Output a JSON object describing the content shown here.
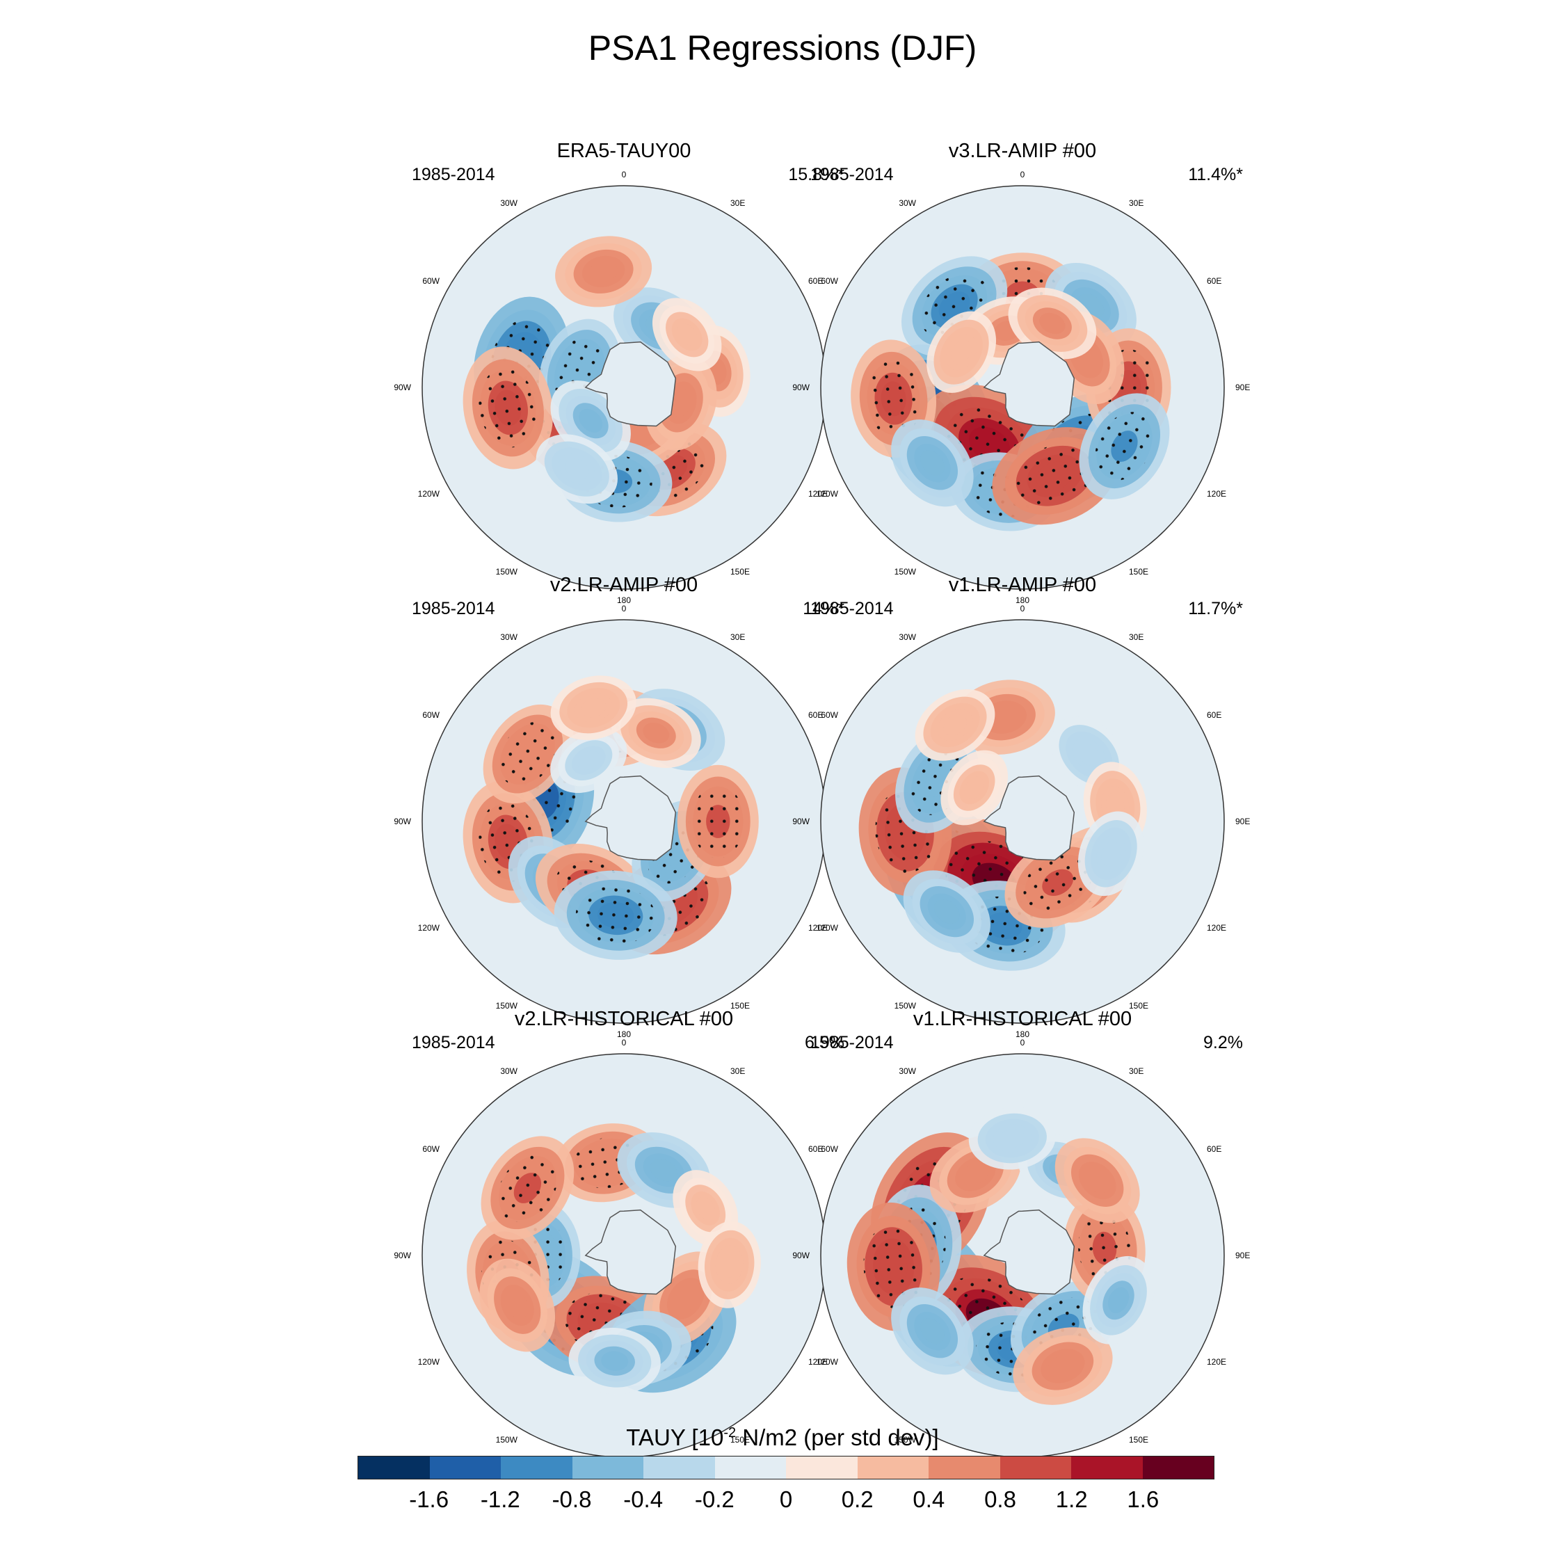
{
  "title": "PSA1 Regressions (DJF)",
  "colors": [
    "#053061",
    "#1f5fa8",
    "#3d8ac2",
    "#7db9da",
    "#b8d8eb",
    "#e3edf3",
    "#fbe7dc",
    "#f6bba0",
    "#e78a6e",
    "#cc4b43",
    "#aa1428",
    "#67001f"
  ],
  "chart_data": {
    "type": "heatmap",
    "projection": "polar-stereographic (southern hemisphere)",
    "variable": "TAUY",
    "units_prefix": "TAUY [10",
    "units_exp": "-2",
    "units_suffix": " N/m2 (per std dev)]",
    "colorbar_ticks": [
      "-1.6",
      "-1.2",
      "-0.8",
      "-0.4",
      "-0.2",
      "0",
      "0.2",
      "0.4",
      "0.8",
      "1.2",
      "1.6"
    ],
    "lon_labels": [
      "0",
      "30E",
      "60E",
      "90E",
      "120E",
      "150E",
      "180",
      "150W",
      "120W",
      "90W",
      "60W",
      "30W"
    ],
    "panels": [
      {
        "title": "ERA5-TAUY00",
        "years": "1985-2014",
        "pct": "15.8%*",
        "blobs": [
          [
            -115,
            28,
            1.3
          ],
          [
            -75,
            45,
            -1.2
          ],
          [
            -70,
            20,
            -0.8
          ],
          [
            150,
            40,
            1.0
          ],
          [
            155,
            20,
            0.7
          ],
          [
            -175,
            40,
            -0.9
          ],
          [
            -100,
            50,
            1.1
          ],
          [
            30,
            30,
            -0.6
          ],
          [
            -10,
            50,
            0.6
          ],
          [
            80,
            40,
            0.5
          ],
          [
            105,
            25,
            0.6
          ],
          [
            50,
            35,
            0.3
          ],
          [
            -135,
            20,
            -0.5
          ],
          [
            -150,
            40,
            -0.4
          ]
        ]
      },
      {
        "title": "v3.LR-AMIP  #00",
        "years": "1985-2014",
        "pct": "11.4%*",
        "blobs": [
          [
            -110,
            40,
            -1.7
          ],
          [
            -150,
            28,
            1.6
          ],
          [
            -170,
            45,
            -0.8
          ],
          [
            140,
            35,
            -1.3
          ],
          [
            160,
            40,
            1.2
          ],
          [
            -95,
            55,
            1.0
          ],
          [
            0,
            40,
            0.9
          ],
          [
            -40,
            45,
            -1.0
          ],
          [
            40,
            45,
            -0.7
          ],
          [
            90,
            45,
            1.0
          ],
          [
            65,
            30,
            0.6
          ],
          [
            120,
            50,
            -0.9
          ],
          [
            -15,
            25,
            0.5
          ],
          [
            25,
            30,
            0.5
          ],
          [
            -130,
            50,
            -0.6
          ],
          [
            -60,
            30,
            0.4
          ]
        ]
      },
      {
        "title": "v2.LR-AMIP  #00",
        "years": "1985-2014",
        "pct": "14%*",
        "blobs": [
          [
            -75,
            35,
            -1.3
          ],
          [
            -100,
            50,
            1.1
          ],
          [
            -130,
            40,
            -0.7
          ],
          [
            -155,
            32,
            1.0
          ],
          [
            150,
            40,
            1.2
          ],
          [
            120,
            25,
            -0.8
          ],
          [
            90,
            40,
            0.9
          ],
          [
            -5,
            40,
            0.8
          ],
          [
            30,
            45,
            -0.7
          ],
          [
            -55,
            50,
            0.8
          ],
          [
            -175,
            40,
            -1.1
          ],
          [
            20,
            40,
            0.5
          ],
          [
            -30,
            30,
            -0.3
          ],
          [
            -15,
            50,
            0.4
          ]
        ]
      },
      {
        "title": "v1.LR-AMIP  #00",
        "years": "1985-2014",
        "pct": "11.7%*",
        "blobs": [
          [
            -125,
            38,
            -1.8
          ],
          [
            -155,
            28,
            1.8
          ],
          [
            -170,
            45,
            -1.1
          ],
          [
            130,
            35,
            0.8
          ],
          [
            150,
            30,
            0.9
          ],
          [
            -95,
            50,
            1.2
          ],
          [
            -10,
            45,
            0.7
          ],
          [
            -65,
            40,
            -0.8
          ],
          [
            45,
            40,
            -0.4
          ],
          [
            80,
            40,
            0.4
          ],
          [
            -35,
            50,
            0.4
          ],
          [
            -55,
            25,
            0.3
          ],
          [
            110,
            40,
            -0.4
          ],
          [
            -140,
            50,
            -0.6
          ]
        ]
      },
      {
        "title": "v2.LR-HISTORICAL  #00",
        "years": "1985-2014",
        "pct": "6.5%",
        "blobs": [
          [
            -135,
            35,
            -1.5
          ],
          [
            -165,
            30,
            1.2
          ],
          [
            -90,
            35,
            -0.8
          ],
          [
            150,
            40,
            -1.4
          ],
          [
            125,
            32,
            0.7
          ],
          [
            -100,
            50,
            0.9
          ],
          [
            -10,
            40,
            0.8
          ],
          [
            25,
            40,
            -0.6
          ],
          [
            -55,
            50,
            0.9
          ],
          [
            170,
            40,
            -0.7
          ],
          [
            -115,
            50,
            0.6
          ],
          [
            60,
            40,
            0.3
          ],
          [
            95,
            45,
            0.4
          ],
          [
            -175,
            45,
            -0.5
          ]
        ]
      },
      {
        "title": "v1.LR-HISTORICAL  #00",
        "years": "1985-2014",
        "pct": "9.2%",
        "blobs": [
          [
            -115,
            40,
            -1.6
          ],
          [
            -150,
            30,
            1.7
          ],
          [
            -175,
            40,
            -1.0
          ],
          [
            -60,
            45,
            1.6
          ],
          [
            -85,
            45,
            -1.1
          ],
          [
            -95,
            55,
            1.2
          ],
          [
            150,
            35,
            -0.9
          ],
          [
            160,
            50,
            0.7
          ],
          [
            85,
            35,
            0.9
          ],
          [
            -30,
            40,
            0.6
          ],
          [
            25,
            40,
            -0.5
          ],
          [
            45,
            45,
            0.6
          ],
          [
            115,
            45,
            -0.5
          ],
          [
            -5,
            50,
            -0.4
          ],
          [
            -130,
            50,
            -0.6
          ]
        ]
      }
    ]
  }
}
